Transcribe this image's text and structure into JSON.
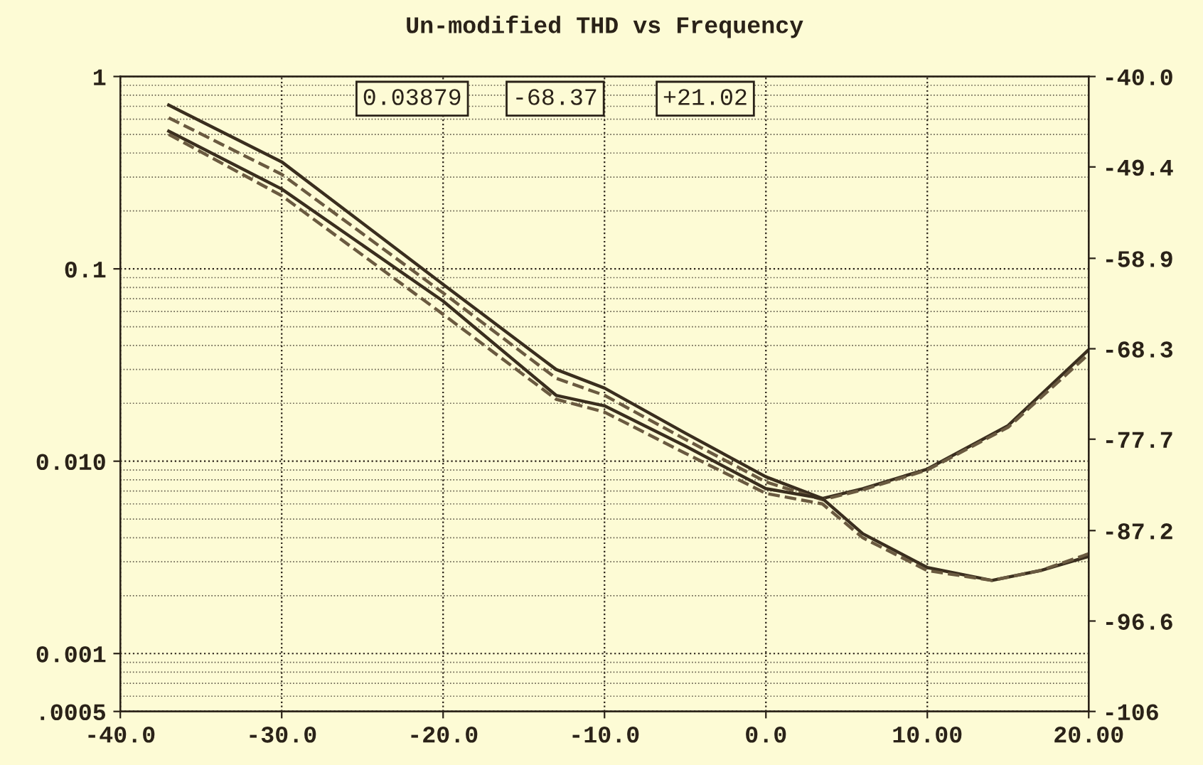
{
  "chart_data": {
    "type": "line",
    "title": "Un-modified THD vs Frequency",
    "annotations": [
      "0.03879",
      "-68.37",
      "+21.02"
    ],
    "log": "y",
    "grid": true,
    "marker": "none",
    "xlim": [
      -40,
      20
    ],
    "xticks": [
      {
        "value": -40,
        "label": "-40.0"
      },
      {
        "value": -30,
        "label": "-30.0"
      },
      {
        "value": -20,
        "label": "-20.0"
      },
      {
        "value": -10,
        "label": "-10.0"
      },
      {
        "value": 0,
        "label": "0.0"
      },
      {
        "value": 10,
        "label": "10.00"
      },
      {
        "value": 20,
        "label": "20.00"
      }
    ],
    "ylim": [
      0.0005,
      1
    ],
    "yticks": [
      {
        "value": 0.0005,
        "label": ".0005"
      },
      {
        "value": 0.001,
        "label": "0.001"
      },
      {
        "value": 0.01,
        "label": "0.010"
      },
      {
        "value": 0.1,
        "label": "0.1"
      },
      1
    ],
    "y2lim": [
      -106,
      -40
    ],
    "y2ticks": [
      {
        "value": -106,
        "label": "-106"
      },
      -96.6,
      -87.2,
      -77.7,
      -68.3,
      -58.9,
      -49.4,
      {
        "value": -40,
        "label": "-40.0"
      }
    ],
    "series": [
      {
        "color": "#3a2e1e",
        "line_style": "solid",
        "x": [
          -37,
          -30,
          -20,
          -13,
          -10,
          -5,
          0,
          3.5,
          6,
          10,
          15,
          20
        ],
        "values": [
          0.71,
          0.36,
          0.083,
          0.03,
          0.024,
          0.014,
          0.0083,
          0.0064,
          0.0072,
          0.0091,
          0.0153,
          0.038
        ]
      },
      {
        "color": "#6a5a40",
        "line_style": "dashed",
        "x": [
          -37,
          -30,
          -20,
          -13,
          -10,
          -5,
          0,
          3.5,
          6,
          10,
          15,
          20
        ],
        "values": [
          0.61,
          0.31,
          0.075,
          0.027,
          0.022,
          0.013,
          0.0078,
          0.0063,
          0.0071,
          0.009,
          0.015,
          0.036
        ]
      },
      {
        "color": "#3a2e1e",
        "line_style": "solid",
        "x": [
          -37,
          -30,
          -20,
          -13,
          -10,
          -5,
          0,
          3.5,
          6,
          10,
          14,
          17,
          20
        ],
        "values": [
          0.52,
          0.26,
          0.068,
          0.022,
          0.0194,
          0.012,
          0.0072,
          0.0064,
          0.0042,
          0.0028,
          0.0024,
          0.0027,
          0.0032
        ]
      },
      {
        "color": "#6a5a40",
        "line_style": "dashed",
        "x": [
          -37,
          -30,
          -20,
          -13,
          -10,
          -5,
          0,
          3.5,
          6,
          10,
          14,
          17,
          20
        ],
        "values": [
          0.5,
          0.24,
          0.058,
          0.021,
          0.018,
          0.011,
          0.0068,
          0.006,
          0.004,
          0.0027,
          0.0024,
          0.0027,
          0.0033
        ]
      }
    ]
  }
}
